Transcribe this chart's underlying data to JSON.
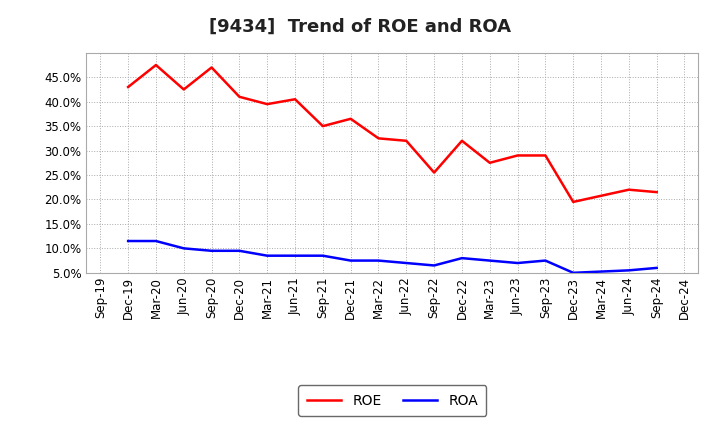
{
  "title": "[9434]  Trend of ROE and ROA",
  "x_labels": [
    "Sep-19",
    "Dec-19",
    "Mar-20",
    "Jun-20",
    "Sep-20",
    "Dec-20",
    "Mar-21",
    "Jun-21",
    "Sep-21",
    "Dec-21",
    "Mar-22",
    "Jun-22",
    "Sep-22",
    "Dec-22",
    "Mar-23",
    "Jun-23",
    "Sep-23",
    "Dec-23",
    "Mar-24",
    "Jun-24",
    "Sep-24",
    "Dec-24"
  ],
  "roe_x_labels": [
    "Dec-19",
    "Mar-20",
    "Jun-20",
    "Sep-20",
    "Dec-20",
    "Mar-21",
    "Jun-21",
    "Sep-21",
    "Dec-21",
    "Mar-22",
    "Jun-22",
    "Sep-22",
    "Dec-22",
    "Mar-23",
    "Jun-23",
    "Sep-23",
    "Dec-23",
    "Jun-24",
    "Sep-24"
  ],
  "roe_values": [
    43.0,
    47.5,
    42.5,
    47.0,
    41.0,
    39.5,
    40.5,
    35.0,
    36.5,
    32.5,
    32.0,
    25.5,
    32.0,
    27.5,
    29.0,
    29.0,
    19.5,
    22.0,
    21.5
  ],
  "roa_x_labels": [
    "Dec-19",
    "Mar-20",
    "Jun-20",
    "Sep-20",
    "Dec-20",
    "Mar-21",
    "Jun-21",
    "Sep-21",
    "Dec-21",
    "Mar-22",
    "Jun-22",
    "Sep-22",
    "Dec-22",
    "Mar-23",
    "Jun-23",
    "Sep-23",
    "Dec-23",
    "Jun-24",
    "Sep-24"
  ],
  "roa_values": [
    11.5,
    11.5,
    10.0,
    9.5,
    9.5,
    8.5,
    8.5,
    8.5,
    7.5,
    7.5,
    7.0,
    6.5,
    8.0,
    7.5,
    7.0,
    7.5,
    5.0,
    5.5,
    6.0
  ],
  "roe_color": "#FF0000",
  "roa_color": "#0000FF",
  "background_color": "#FFFFFF",
  "grid_color": "#AAAAAA",
  "ylim_min": 5.0,
  "ylim_max": 50.0,
  "yticks": [
    5.0,
    10.0,
    15.0,
    20.0,
    25.0,
    30.0,
    35.0,
    40.0,
    45.0
  ],
  "legend_roe": "ROE",
  "legend_roa": "ROA",
  "title_fontsize": 13,
  "tick_fontsize": 8.5,
  "line_width": 1.8
}
